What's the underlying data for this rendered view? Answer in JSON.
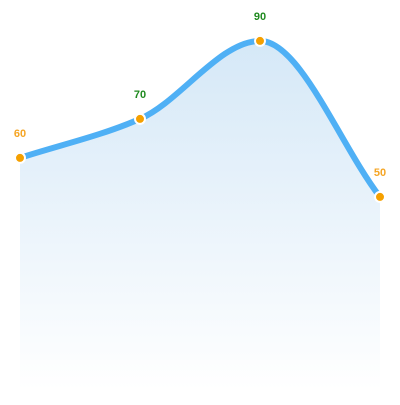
{
  "chart_data": {
    "type": "area",
    "x": [
      0,
      1,
      2,
      3
    ],
    "ylim": [
      0,
      100
    ],
    "series": [
      {
        "values": [
          60,
          70,
          90,
          50
        ],
        "labels": [
          "60",
          "70",
          "90",
          "50"
        ],
        "label_colors": [
          "#f5a524",
          "#1f8a1f",
          "#1f8a1f",
          "#f5a524"
        ]
      }
    ],
    "grid": false,
    "legend": "none",
    "colors": {
      "line": "#4fb0f5",
      "fill_top": "#d5e8f7",
      "fill_bottom": "#ffffff",
      "point_fill": "#f5a000",
      "point_stroke": "#ffffff"
    }
  }
}
